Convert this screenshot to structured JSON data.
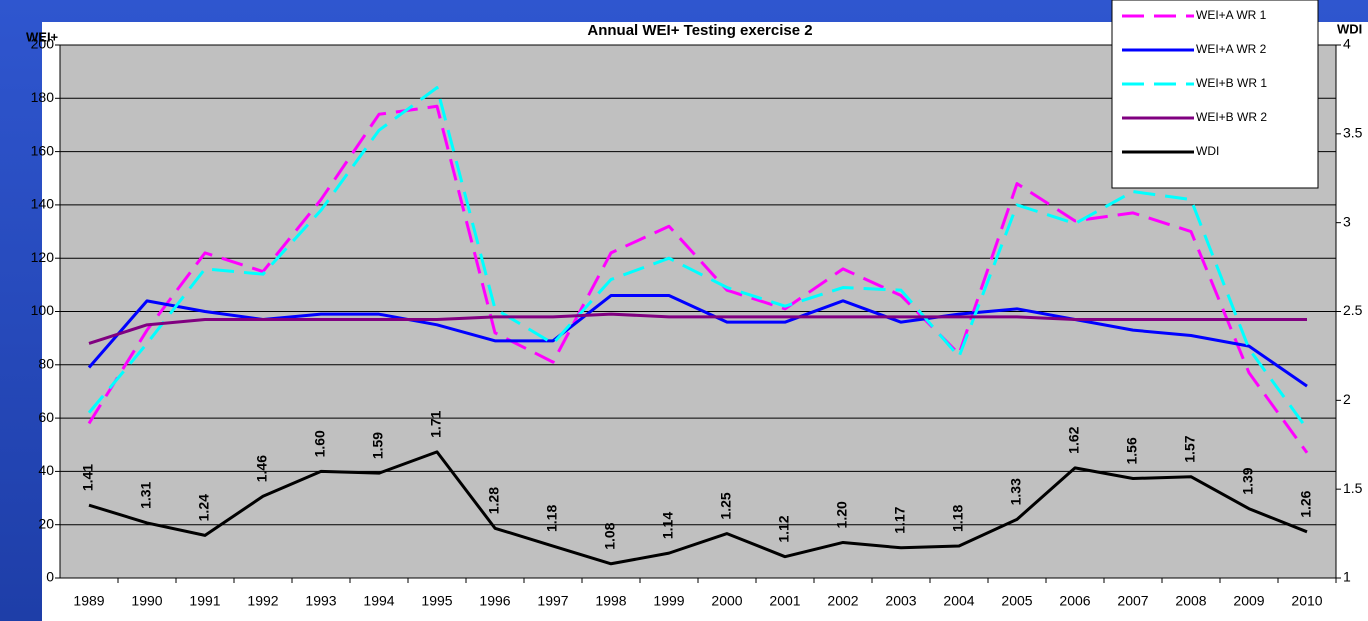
{
  "chart_data": {
    "type": "line",
    "title": "Annual WEI+ Testing exercise 2",
    "y_label": "WEI+",
    "y2_label": "WDI",
    "categories": [
      "1989",
      "1990",
      "1991",
      "1992",
      "1993",
      "1994",
      "1995",
      "1996",
      "1997",
      "1998",
      "1999",
      "2000",
      "2001",
      "2002",
      "2003",
      "2004",
      "2005",
      "2006",
      "2007",
      "2008",
      "2009",
      "2010"
    ],
    "ylim": [
      0,
      200
    ],
    "yticks": [
      0,
      20,
      40,
      60,
      80,
      100,
      120,
      140,
      160,
      180,
      200
    ],
    "y2lim": [
      1,
      4
    ],
    "y2ticks": [
      1,
      1.5,
      2,
      2.5,
      3,
      3.5,
      4
    ],
    "grid": true,
    "legend": "top-right",
    "series": [
      {
        "name": "WEI+A WR 1",
        "color": "#ff00ff",
        "dashed": true,
        "values": [
          58,
          93,
          122,
          115,
          142,
          174,
          177,
          92,
          81,
          122,
          132,
          108,
          101,
          116,
          106,
          84,
          148,
          134,
          137,
          130,
          77,
          47
        ]
      },
      {
        "name": "WEI+A WR 2",
        "color": "#0000ff",
        "dashed": false,
        "values": [
          79,
          104,
          100,
          97,
          99,
          99,
          95,
          89,
          89,
          106,
          106,
          96,
          96,
          104,
          96,
          99,
          101,
          97,
          93,
          91,
          87,
          72
        ]
      },
      {
        "name": "WEI+B WR 1",
        "color": "#00ffff",
        "dashed": true,
        "values": [
          62,
          88,
          116,
          114,
          138,
          168,
          184,
          101,
          88,
          112,
          120,
          109,
          102,
          109,
          108,
          83,
          140,
          133,
          145,
          142,
          86,
          56
        ]
      },
      {
        "name": "WEI+B WR 2",
        "color": "#800080",
        "dashed": false,
        "values": [
          88,
          95,
          97,
          97,
          97,
          97,
          97,
          98,
          98,
          99,
          98,
          98,
          98,
          98,
          98,
          98,
          98,
          97,
          97,
          97,
          97,
          97
        ]
      },
      {
        "name": "WDI",
        "color": "#000000",
        "dashed": false,
        "axis": "y2",
        "values": [
          1.41,
          1.31,
          1.24,
          1.46,
          1.6,
          1.59,
          1.71,
          1.28,
          1.18,
          1.08,
          1.14,
          1.25,
          1.12,
          1.2,
          1.17,
          1.18,
          1.33,
          1.62,
          1.56,
          1.57,
          1.39,
          1.26
        ],
        "value_labels": [
          "1.41",
          "1.31",
          "1.24",
          "1.46",
          "1.60",
          "1.59",
          "1.71",
          "1.28",
          "1.18",
          "1.08",
          "1.14",
          "1.25",
          "1.12",
          "1.20",
          "1.17",
          "1.18",
          "1.33",
          "1.62",
          "1.56",
          "1.57",
          "1.39",
          "1.26"
        ]
      }
    ]
  }
}
